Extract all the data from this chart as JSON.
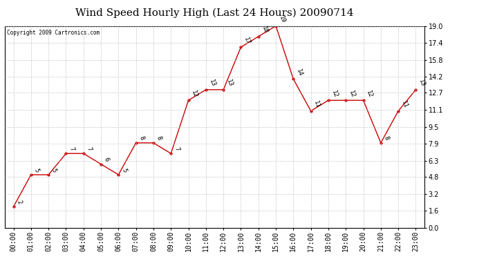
{
  "title": "Wind Speed Hourly High (Last 24 Hours) 20090714",
  "copyright": "Copyright 2009 Cartronics.com",
  "hours": [
    "00:00",
    "01:00",
    "02:00",
    "03:00",
    "04:00",
    "05:00",
    "06:00",
    "07:00",
    "08:00",
    "09:00",
    "10:00",
    "11:00",
    "12:00",
    "13:00",
    "14:00",
    "15:00",
    "16:00",
    "17:00",
    "18:00",
    "19:00",
    "20:00",
    "21:00",
    "22:00",
    "23:00"
  ],
  "values": [
    2,
    5,
    5,
    7,
    7,
    6,
    5,
    8,
    8,
    7,
    12,
    13,
    13,
    17,
    18,
    19,
    14,
    11,
    12,
    12,
    12,
    8,
    11,
    13
  ],
  "ylim": [
    0.0,
    19.0
  ],
  "yticks": [
    0.0,
    1.6,
    3.2,
    4.8,
    6.3,
    7.9,
    9.5,
    11.1,
    12.7,
    14.2,
    15.8,
    17.4,
    19.0
  ],
  "line_color": "#cc0000",
  "marker_color": "#cc0000",
  "bg_color": "#ffffff",
  "grid_color": "#bbbbbb",
  "title_fontsize": 11,
  "label_fontsize": 7,
  "annot_fontsize": 6.5
}
